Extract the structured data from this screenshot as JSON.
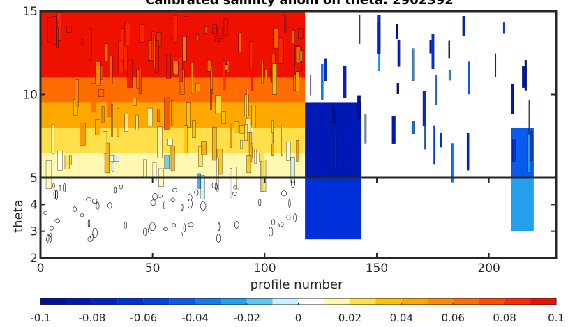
{
  "chart_data": {
    "type": "heatmap",
    "title": "Calibrated salinity anom on theta: 2902392",
    "xlabel": "profile number",
    "ylabel": "theta",
    "xlim": [
      0,
      230
    ],
    "ylim_upper": [
      5,
      15
    ],
    "ylim_lower": [
      2,
      5
    ],
    "x_ticks": [
      "0",
      "50",
      "100",
      "150",
      "200"
    ],
    "x_tick_values": [
      0,
      50,
      100,
      150,
      200
    ],
    "y_ticks_upper": [
      "10",
      "15"
    ],
    "y_tick_values_upper": [
      10,
      15
    ],
    "y_ticks_lower": [
      "2",
      "3",
      "4",
      "5"
    ],
    "y_tick_values_lower": [
      2,
      3,
      4,
      5
    ],
    "colorbar": {
      "range": [
        -0.1,
        0.1
      ],
      "ticks": [
        "-0.1",
        "-0.08",
        "-0.06",
        "-0.04",
        "-0.02",
        "0",
        "0.02",
        "0.04",
        "0.06",
        "0.08",
        "0.1"
      ],
      "tick_values": [
        -0.1,
        -0.08,
        -0.06,
        -0.04,
        -0.02,
        0,
        0.02,
        0.04,
        0.06,
        0.08,
        0.1
      ],
      "levels": [
        -0.1,
        -0.09,
        -0.08,
        -0.07,
        -0.06,
        -0.05,
        -0.04,
        -0.03,
        -0.02,
        -0.01,
        0,
        0.01,
        0.02,
        0.03,
        0.04,
        0.05,
        0.06,
        0.07,
        0.08,
        0.09,
        0.1
      ],
      "colors": [
        "#00109c",
        "#0018b4",
        "#0022c8",
        "#0030da",
        "#0042e6",
        "#0a5af0",
        "#1478f0",
        "#22a0ec",
        "#5cc8f0",
        "#c8f0ff",
        "#ffffff",
        "#fff8b0",
        "#ffe04a",
        "#ffc200",
        "#ffa800",
        "#ff8a00",
        "#ff6c00",
        "#ff4a00",
        "#ff2800",
        "#f01000"
      ]
    },
    "regions": [
      {
        "x": [
          0,
          118
        ],
        "theta": [
          11,
          15
        ],
        "value": 0.09
      },
      {
        "x": [
          0,
          118
        ],
        "theta": [
          9.5,
          11
        ],
        "value": 0.065
      },
      {
        "x": [
          0,
          118
        ],
        "theta": [
          8,
          9.5
        ],
        "value": 0.045
      },
      {
        "x": [
          0,
          118
        ],
        "theta": [
          6.5,
          8
        ],
        "value": 0.025
      },
      {
        "x": [
          0,
          118
        ],
        "theta": [
          5,
          6.5
        ],
        "value": 0.01
      },
      {
        "x": [
          118,
          143
        ],
        "theta": [
          5,
          9.5
        ],
        "value": -0.09
      },
      {
        "x": [
          118,
          143
        ],
        "theta": [
          2.7,
          5
        ],
        "value": -0.07
      },
      {
        "x": [
          210,
          220
        ],
        "theta": [
          5,
          8
        ],
        "value": -0.05
      },
      {
        "x": [
          210,
          220
        ],
        "theta": [
          3,
          5
        ],
        "value": -0.03
      }
    ]
  }
}
